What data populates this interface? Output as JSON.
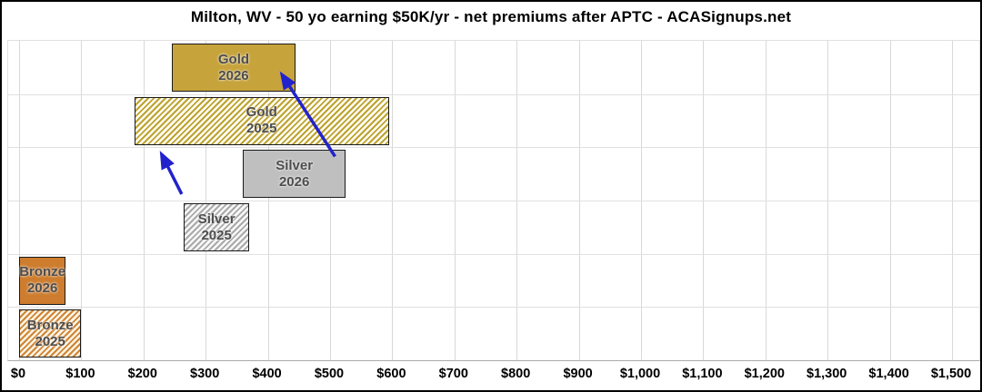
{
  "title": "Milton, WV - 50 yo earning $50K/yr - net premiums after APTC - ACASignups.net",
  "colors": {
    "arrow": "#2222CC",
    "gridline": "#D8D8D8",
    "bar_border": "#1a1a1a",
    "bar_label_text": "#4D4D4D",
    "gold_solid": "#C7A33C",
    "gold_hatch_stripe": "#BEA231",
    "gold_hatch_bg": "#FFFEF4",
    "silver_solid": "#BFBFBF",
    "silver_hatch_stripe": "#A9A9A9",
    "silver_hatch_bg": "#F8F8F8",
    "bronze_solid": "#CE7D2F",
    "bronze_hatch_stripe": "#CE8434",
    "bronze_hatch_bg": "#FCF4E4"
  },
  "chart_data": {
    "type": "bar",
    "subtype": "horizontal-range-bars",
    "title": "Milton, WV - 50 yo earning $50K/yr - net premiums after APTC - ACASignups.net",
    "xlabel": "",
    "ylabel": "",
    "xlim": [
      0,
      1550
    ],
    "grid": true,
    "x_axis": {
      "tick_step": 100,
      "tick_values": [
        0,
        100,
        200,
        300,
        400,
        500,
        600,
        700,
        800,
        900,
        1000,
        1100,
        1200,
        1300,
        1400,
        1500
      ],
      "tick_labels": [
        "$0",
        "$100",
        "$200",
        "$300",
        "$400",
        "$500",
        "$600",
        "$700",
        "$800",
        "$900",
        "$1,000",
        "$1,100",
        "$1,200",
        "$1,300",
        "$1,400",
        "$1,500"
      ]
    },
    "bars": [
      {
        "id": "gold-2026",
        "line1": "Gold",
        "line2": "2026",
        "min": 245,
        "max": 445,
        "style": "solid",
        "color_key": "gold"
      },
      {
        "id": "gold-2025",
        "line1": "Gold",
        "line2": "2025",
        "min": 185,
        "max": 595,
        "style": "hatched",
        "color_key": "gold"
      },
      {
        "id": "silver-2026",
        "line1": "Silver",
        "line2": "2026",
        "min": 360,
        "max": 525,
        "style": "solid",
        "color_key": "silver"
      },
      {
        "id": "silver-2025",
        "line1": "Silver",
        "line2": "2025",
        "min": 265,
        "max": 370,
        "style": "hatched",
        "color_key": "silver"
      },
      {
        "id": "bronze-2026",
        "line1": "Bronze",
        "line2": "2026",
        "min": 0,
        "max": 75,
        "style": "solid",
        "color_key": "bronze"
      },
      {
        "id": "bronze-2025",
        "line1": "Bronze",
        "line2": "2025",
        "min": 0,
        "max": 100,
        "style": "hatched",
        "color_key": "bronze"
      }
    ],
    "annotations": [
      {
        "id": "arrow-silver-2025-to-gold-2025",
        "type": "arrow",
        "from": {
          "value": 262,
          "row": 2.88
        },
        "to": {
          "value": 230,
          "row": 2.14
        }
      },
      {
        "id": "arrow-silver-2026-to-gold-2026",
        "type": "arrow",
        "from": {
          "value": 509,
          "row": 2.17
        },
        "to": {
          "value": 424,
          "row": 0.64
        }
      }
    ]
  }
}
